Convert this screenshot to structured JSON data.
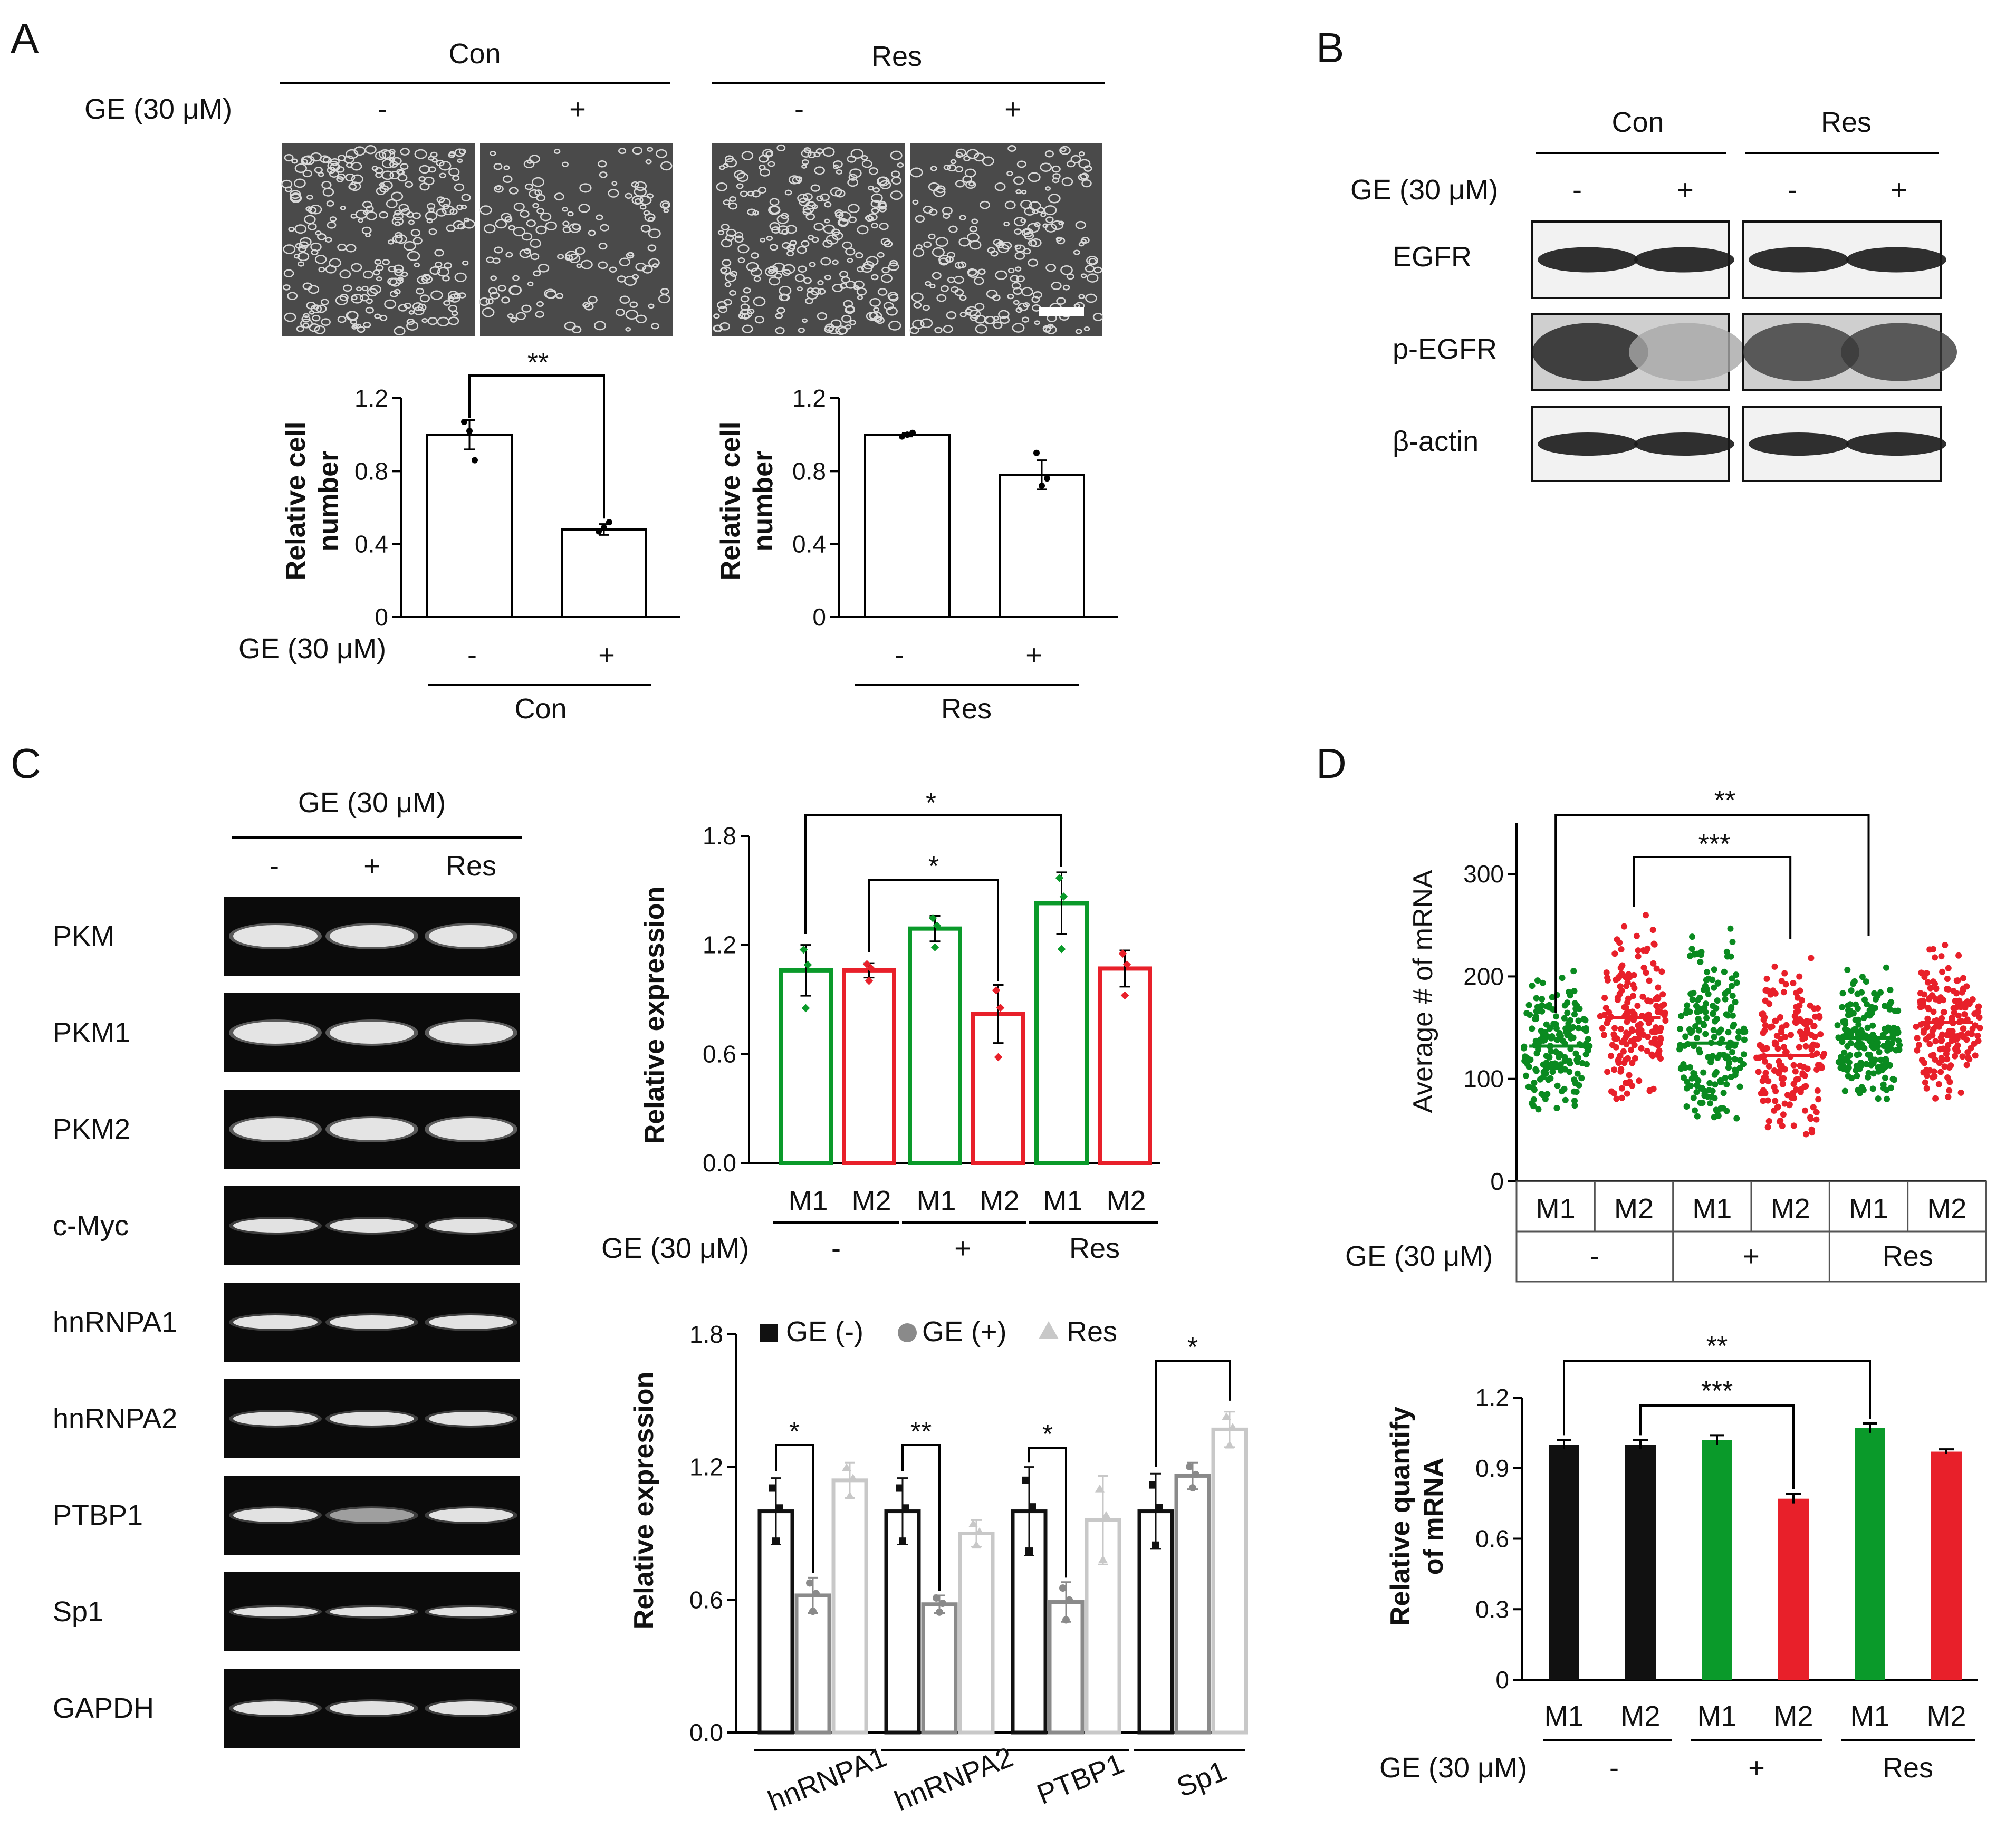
{
  "panels": {
    "A": "A",
    "B": "B",
    "C": "C",
    "D": "D"
  },
  "common": {
    "ge_label": "GE (30 μM)",
    "minus": "-",
    "plus": "+",
    "con": "Con",
    "res": "Res",
    "m1": "M1",
    "m2": "M2"
  },
  "panelA": {
    "ylabel_line1": "Relative cell",
    "ylabel_line2": "number",
    "significance": "**",
    "yticks": [
      "0",
      "0.4",
      "0.8",
      "1.2"
    ]
  },
  "panelB": {
    "rows": [
      "EGFR",
      "p-EGFR",
      "β-actin"
    ]
  },
  "panelC": {
    "gel_rows": [
      "PKM",
      "PKM1",
      "PKM2",
      "c-Myc",
      "hnRNPA1",
      "hnRNPA2",
      "PTBP1",
      "Sp1",
      "GAPDH"
    ],
    "gel_cols": [
      "-",
      "+",
      "Res"
    ],
    "ylabel": "Relative expression",
    "top_yticks": [
      "0.0",
      "0.6",
      "1.2",
      "1.8"
    ],
    "bottom_yticks": [
      "0.0",
      "0.6",
      "1.2",
      "1.8"
    ],
    "legend": [
      "GE (-)",
      "GE (+)",
      "Res"
    ],
    "genes": [
      "hnRNPA1",
      "hnRNPA2",
      "PTBP1",
      "Sp1"
    ],
    "sig_top": [
      "*",
      "*"
    ],
    "sig_bottom": [
      "*",
      "**",
      "*",
      "*"
    ]
  },
  "panelD": {
    "ylabel_top": "Average # of mRNA",
    "top_yticks": [
      "0",
      "100",
      "200",
      "300"
    ],
    "ylabel_bottom_line1": "Relative quantify",
    "ylabel_bottom_line2": "of mRNA",
    "bottom_yticks": [
      "0",
      "0.3",
      "0.6",
      "0.9",
      "1.2"
    ],
    "sig": [
      "**",
      "***"
    ]
  },
  "colors": {
    "green": "#0a9a2a",
    "red": "#e8202a",
    "black": "#111111",
    "grey": "#8a8a8a",
    "lightgrey": "#c8c8c8",
    "dot_green": "#0a8a20",
    "dot_red": "#e8202a"
  },
  "chart_data": [
    {
      "type": "bar",
      "panel": "A-left",
      "categories": [
        "-",
        "+"
      ],
      "values": [
        1.0,
        0.48
      ],
      "error": [
        0.08,
        0.03
      ],
      "points": [
        [
          1.07,
          1.02,
          0.86
        ],
        [
          0.47,
          0.49,
          0.52
        ]
      ],
      "ylim": [
        0,
        1.2
      ],
      "xlabel": "Con",
      "ylabel": "Relative cell number"
    },
    {
      "type": "bar",
      "panel": "A-right",
      "categories": [
        "-",
        "+"
      ],
      "values": [
        1.0,
        0.78
      ],
      "error": [
        0.01,
        0.08
      ],
      "points": [
        [
          0.99,
          1.0,
          1.01
        ],
        [
          0.9,
          0.72,
          0.76
        ]
      ],
      "ylim": [
        0,
        1.2
      ],
      "xlabel": "Res",
      "ylabel": "Relative cell number"
    },
    {
      "type": "bar",
      "panel": "C-top",
      "categories": [
        "M1",
        "M2",
        "M1",
        "M2",
        "M1",
        "M2"
      ],
      "groups": [
        "-",
        "+",
        "Res"
      ],
      "values": [
        1.06,
        1.06,
        1.29,
        0.82,
        1.43,
        1.07
      ],
      "error": [
        0.14,
        0.04,
        0.07,
        0.16,
        0.17,
        0.1
      ],
      "colors": [
        "green",
        "red",
        "green",
        "red",
        "green",
        "red"
      ],
      "ylim": [
        0,
        1.8
      ],
      "ylabel": "Relative expression"
    },
    {
      "type": "bar",
      "panel": "C-bottom",
      "categories": [
        "hnRNPA1",
        "hnRNPA2",
        "PTBP1",
        "Sp1"
      ],
      "series": [
        {
          "name": "GE (-)",
          "values": [
            1.0,
            1.0,
            1.0,
            1.0
          ],
          "error": [
            0.15,
            0.15,
            0.2,
            0.17
          ]
        },
        {
          "name": "GE (+)",
          "values": [
            0.62,
            0.58,
            0.59,
            1.16
          ],
          "error": [
            0.08,
            0.04,
            0.09,
            0.06
          ]
        },
        {
          "name": "Res",
          "values": [
            1.14,
            0.9,
            0.96,
            1.37
          ],
          "error": [
            0.08,
            0.06,
            0.2,
            0.08
          ]
        }
      ],
      "ylim": [
        0,
        1.8
      ],
      "ylabel": "Relative expression"
    },
    {
      "type": "scatter",
      "panel": "D-top",
      "categories": [
        "M1",
        "M2",
        "M1",
        "M2",
        "M1",
        "M2"
      ],
      "groups": [
        "-",
        "+",
        "Res"
      ],
      "means": [
        132,
        160,
        135,
        123,
        140,
        155
      ],
      "ranges": [
        [
          70,
          220
        ],
        [
          80,
          265
        ],
        [
          60,
          260
        ],
        [
          45,
          230
        ],
        [
          80,
          210
        ],
        [
          80,
          235
        ]
      ],
      "colors": [
        "green",
        "red",
        "green",
        "red",
        "green",
        "red"
      ],
      "ylim": [
        0,
        350
      ],
      "ylabel": "Average # of mRNA"
    },
    {
      "type": "bar",
      "panel": "D-bottom",
      "categories": [
        "M1",
        "M2",
        "M1",
        "M2",
        "M1",
        "M2"
      ],
      "groups": [
        "-",
        "+",
        "Res"
      ],
      "values": [
        1.0,
        1.0,
        1.02,
        0.77,
        1.07,
        0.97
      ],
      "error": [
        0.02,
        0.02,
        0.02,
        0.02,
        0.02,
        0.01
      ],
      "colors": [
        "black",
        "black",
        "green",
        "red",
        "green",
        "red"
      ],
      "ylim": [
        0,
        1.2
      ],
      "ylabel": "Relative quantify of mRNA"
    }
  ]
}
